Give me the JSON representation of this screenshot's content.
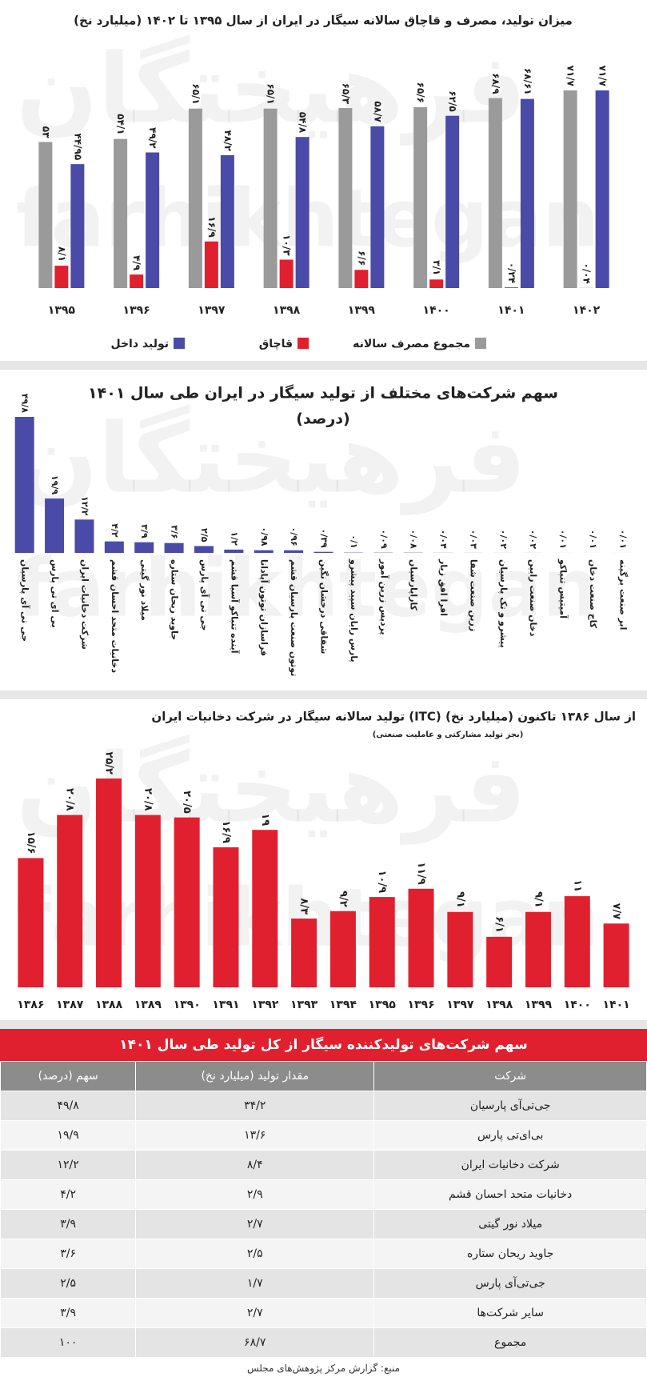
{
  "watermark": [
    "فرهیختگان",
    "farhikhtegan"
  ],
  "chart_data": [
    {
      "type": "bar",
      "title": "میزان تولید، مصرف و قاچاق سالانه سیگار در ایران از سال ۱۳۹۵ تا ۱۴۰۲ (میلیارد نخ)",
      "categories": [
        "۱۳۹۵",
        "۱۳۹۶",
        "۱۳۹۷",
        "۱۳۹۸",
        "۱۳۹۹",
        "۱۴۰۰",
        "۱۴۰۱",
        "۱۴۰۲"
      ],
      "legend": "bottom",
      "series": [
        {
          "name": "مجموع مصرف سالانه",
          "color": "#9a9a9a",
          "values": [
            53,
            54.1,
            65.1,
            65.1,
            65.3,
            65.6,
            68.9,
            71.7
          ],
          "value_labels": [
            "۵۳",
            "۵۴/۱",
            "۶۵/۱",
            "۶۵/۱",
            "۶۵/۳",
            "۶۵/۶",
            "۶۸/۹",
            "۷۱/۷"
          ]
        },
        {
          "name": "قاچاق",
          "color": "#e0202e",
          "values": [
            8.1,
            4.9,
            16.9,
            10.3,
            6.6,
            3.1,
            0.24,
            0.04
          ],
          "value_labels": [
            "۸/۱",
            "۴/۹",
            "۱۶/۹",
            "۱۰/۳",
            "۶/۶",
            "۳/۱",
            "۰/۲۴",
            "۰/۰۴"
          ]
        },
        {
          "name": "تولید داخل",
          "color": "#4a4aa8",
          "values": [
            44.95,
            49.2,
            48.2,
            54.8,
            58.7,
            62.5,
            68.61,
            71.7
          ],
          "value_labels": [
            "۴۴/۹۵",
            "۴۹/۲",
            "۴۸/۲",
            "۵۴/۸",
            "۵۸/۷",
            "۶۲/۵",
            "۶۸/۶۱",
            "۷۱/۷"
          ]
        }
      ]
    },
    {
      "type": "bar",
      "title": "سهم شرکت‌های مختلف از تولید سیگار در ایران طی سال ۱۴۰۱",
      "subtitle": "(درصد)",
      "color": "#4a4aa8",
      "categories": [
        "جی تی آی پارسیان",
        "بی ای تی پارس",
        "شرکت دخانیات ایران",
        "دخانیات متحد احسان قشم",
        "میلاد نور گیتی",
        "جاوید ریحان ستاره",
        "جی تی آی پارس",
        "آینده تنباکو آسیا قشم",
        "فراسازان توتون آپادانا",
        "توتون صنعت پارسیان قشم",
        "شقاقی درخشان نگین",
        "پارس رایان سپید پیشرو",
        "پردیس زرین آمور",
        "کاراپارسیان",
        "افرا افق زیار",
        "زرین صنعت شفا",
        "پیشرو و تک پارسیان",
        "دخان صنعت رایین",
        "آمیتیس تنباکو",
        "کاج صنعت دخان",
        "ابر صنعت برگینه"
      ],
      "values": [
        49.8,
        19.9,
        12.2,
        4.2,
        3.9,
        3.6,
        2.5,
        1.2,
        0.98,
        0.96,
        0.39,
        0.1,
        0.09,
        0.08,
        0.04,
        0.03,
        0.02,
        0.02,
        0.01,
        0.01,
        0.01
      ],
      "value_labels": [
        "۴۹/۸",
        "۱۹/۹",
        "۱۲/۲",
        "۴/۲",
        "۳/۹",
        "۳/۶",
        "۲/۵",
        "۱/۲",
        "۰/۹۸",
        "۰/۹۶",
        "۰/۳۹",
        "۰/۱",
        "۰/۰۹",
        "۰/۰۸",
        "۰/۰۴",
        "۰/۰۳",
        "۰/۰۲",
        "۰/۰۲",
        "۰/۰۱",
        "۰/۰۱",
        "۰/۰۱"
      ]
    },
    {
      "type": "bar",
      "title": "تولید سالانه سیگار در شرکت دخانیات ایران (ITC) از سال ۱۳۸۶ تاکنون (میلیارد نخ)",
      "subtitle": "(بجز تولید مشارکتی و عاملیت صنعتی)",
      "color": "#e0202e",
      "categories": [
        "۱۳۸۶",
        "۱۳۸۷",
        "۱۳۸۸",
        "۱۳۸۹",
        "۱۳۹۰",
        "۱۳۹۱",
        "۱۳۹۲",
        "۱۳۹۳",
        "۱۳۹۴",
        "۱۳۹۵",
        "۱۳۹۶",
        "۱۳۹۷",
        "۱۳۹۸",
        "۱۳۹۹",
        "۱۴۰۰",
        "۱۴۰۱"
      ],
      "values": [
        15.6,
        20.8,
        25.2,
        20.8,
        20.5,
        16.9,
        19,
        8.3,
        9.2,
        10.9,
        11.9,
        9.1,
        6.1,
        9.1,
        11,
        7.7
      ],
      "value_labels": [
        "۱۵/۶",
        "۲۰/۸",
        "۲۵/۲",
        "۲۰/۸",
        "۲۰/۵",
        "۱۶/۹",
        "۱۹",
        "۸/۳",
        "۹/۲",
        "۱۰/۹",
        "۱۱/۹",
        "۹/۱",
        "۶/۱",
        "۹/۱",
        "۱۱",
        "۷/۷"
      ]
    }
  ],
  "table": {
    "title": "سهم شرکت‌های تولیدکننده سیگار از کل تولید طی سال ۱۴۰۱",
    "header": [
      "شرکت",
      "مقدار تولید (میلیارد نخ)",
      "سهم (درصد)"
    ],
    "rows": [
      [
        "جی‌تی‌آی پارسیان",
        "۳۴/۲",
        "۴۹/۸"
      ],
      [
        "بی‌ای‌تی پارس",
        "۱۳/۶",
        "۱۹/۹"
      ],
      [
        "شرکت دخانیات ایران",
        "۸/۴",
        "۱۲/۲"
      ],
      [
        "دخانیات متحد احسان قشم",
        "۲/۹",
        "۴/۲"
      ],
      [
        "میلاد نور گیتی",
        "۲/۷",
        "۳/۹"
      ],
      [
        "جاوید ریحان ستاره",
        "۲/۵",
        "۳/۶"
      ],
      [
        "جی‌تی‌آی پارس",
        "۱/۷",
        "۲/۵"
      ],
      [
        "سایر شرکت‌ها",
        "۲/۷",
        "۳/۹"
      ],
      [
        "مجموع",
        "۶۸/۷",
        "۱۰۰"
      ]
    ],
    "source": "منبع: گزارش مرکز پژوهش‌های مجلس"
  }
}
